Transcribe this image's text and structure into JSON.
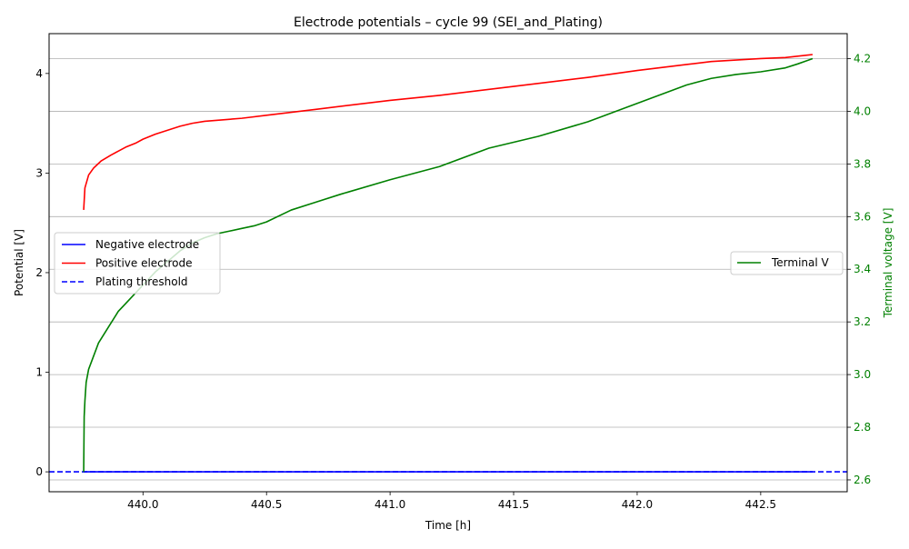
{
  "chart_data": {
    "type": "line",
    "title": "Electrode potentials – cycle 99 (SEI_and_Plating)",
    "xlabel": "Time [h]",
    "ylabel": "Potential [V]",
    "ylabel_right": "Terminal voltage [V]",
    "xlim": [
      439.62,
      442.85
    ],
    "ylim": [
      -0.2,
      4.4
    ],
    "ylim_right": [
      2.555,
      4.295
    ],
    "x_ticks": [
      "440.0",
      "440.5",
      "441.0",
      "441.5",
      "442.0",
      "442.5"
    ],
    "x_tick_values": [
      440.0,
      440.5,
      441.0,
      441.5,
      442.0,
      442.5
    ],
    "y_ticks": [
      "0",
      "1",
      "2",
      "3",
      "4"
    ],
    "y_tick_values": [
      0,
      1,
      2,
      3,
      4
    ],
    "y_ticks_right": [
      "2.6",
      "2.8",
      "3.0",
      "3.2",
      "3.4",
      "3.6",
      "3.8",
      "4.0",
      "4.2"
    ],
    "y_tick_values_right": [
      2.6,
      2.8,
      3.0,
      3.2,
      3.4,
      3.6,
      3.8,
      4.0,
      4.2
    ],
    "grid": "horizontal, right axis",
    "legend_left": {
      "placement": "center-left",
      "entries": [
        "Negative electrode",
        "Positive electrode",
        "Plating threshold"
      ]
    },
    "legend_right": {
      "placement": "center-right",
      "entries": [
        "Terminal V"
      ]
    },
    "series": [
      {
        "name": "Negative electrode",
        "axis": "left",
        "color": "#0000ff",
        "style": "solid",
        "x": [
          439.76,
          440.0,
          440.5,
          441.0,
          441.5,
          442.0,
          442.5,
          442.71
        ],
        "y": [
          0.0,
          0.0,
          0.0,
          0.0,
          0.0,
          0.0,
          0.0,
          0.0
        ]
      },
      {
        "name": "Positive electrode",
        "axis": "left",
        "color": "#ff0000",
        "style": "solid",
        "x": [
          439.76,
          439.765,
          439.78,
          439.8,
          439.83,
          439.87,
          439.9,
          439.93,
          439.97,
          440.0,
          440.05,
          440.1,
          440.15,
          440.2,
          440.25,
          440.4,
          440.5,
          440.7,
          441.0,
          441.2,
          441.5,
          441.8,
          442.0,
          442.2,
          442.3,
          442.5,
          442.6,
          442.71
        ],
        "y": [
          2.63,
          2.85,
          2.98,
          3.05,
          3.12,
          3.18,
          3.22,
          3.26,
          3.3,
          3.34,
          3.39,
          3.43,
          3.47,
          3.5,
          3.52,
          3.55,
          3.58,
          3.64,
          3.73,
          3.78,
          3.87,
          3.96,
          4.03,
          4.09,
          4.12,
          4.15,
          4.16,
          4.19
        ]
      },
      {
        "name": "Plating threshold",
        "axis": "left",
        "color": "#0000ff",
        "style": "dashed",
        "x": [
          439.62,
          442.85
        ],
        "y": [
          0.0,
          0.0
        ]
      },
      {
        "name": "Terminal V",
        "axis": "right",
        "color": "#008000",
        "style": "solid",
        "x": [
          439.76,
          439.762,
          439.765,
          439.77,
          439.78,
          439.8,
          439.82,
          439.86,
          439.9,
          439.93,
          439.97,
          440.0,
          440.05,
          440.1,
          440.15,
          440.2,
          440.25,
          440.3,
          440.35,
          440.4,
          440.45,
          440.5,
          440.6,
          440.7,
          440.8,
          441.0,
          441.2,
          441.4,
          441.6,
          441.8,
          441.9,
          442.0,
          442.1,
          442.2,
          442.3,
          442.4,
          442.5,
          442.6,
          442.65,
          442.71
        ],
        "y": [
          2.63,
          2.84,
          2.9,
          2.97,
          3.02,
          3.07,
          3.12,
          3.18,
          3.24,
          3.27,
          3.31,
          3.34,
          3.39,
          3.43,
          3.47,
          3.5,
          3.52,
          3.535,
          3.545,
          3.555,
          3.565,
          3.58,
          3.625,
          3.655,
          3.685,
          3.74,
          3.79,
          3.86,
          3.905,
          3.96,
          3.995,
          4.03,
          4.065,
          4.1,
          4.125,
          4.14,
          4.15,
          4.165,
          4.18,
          4.2
        ]
      }
    ]
  }
}
